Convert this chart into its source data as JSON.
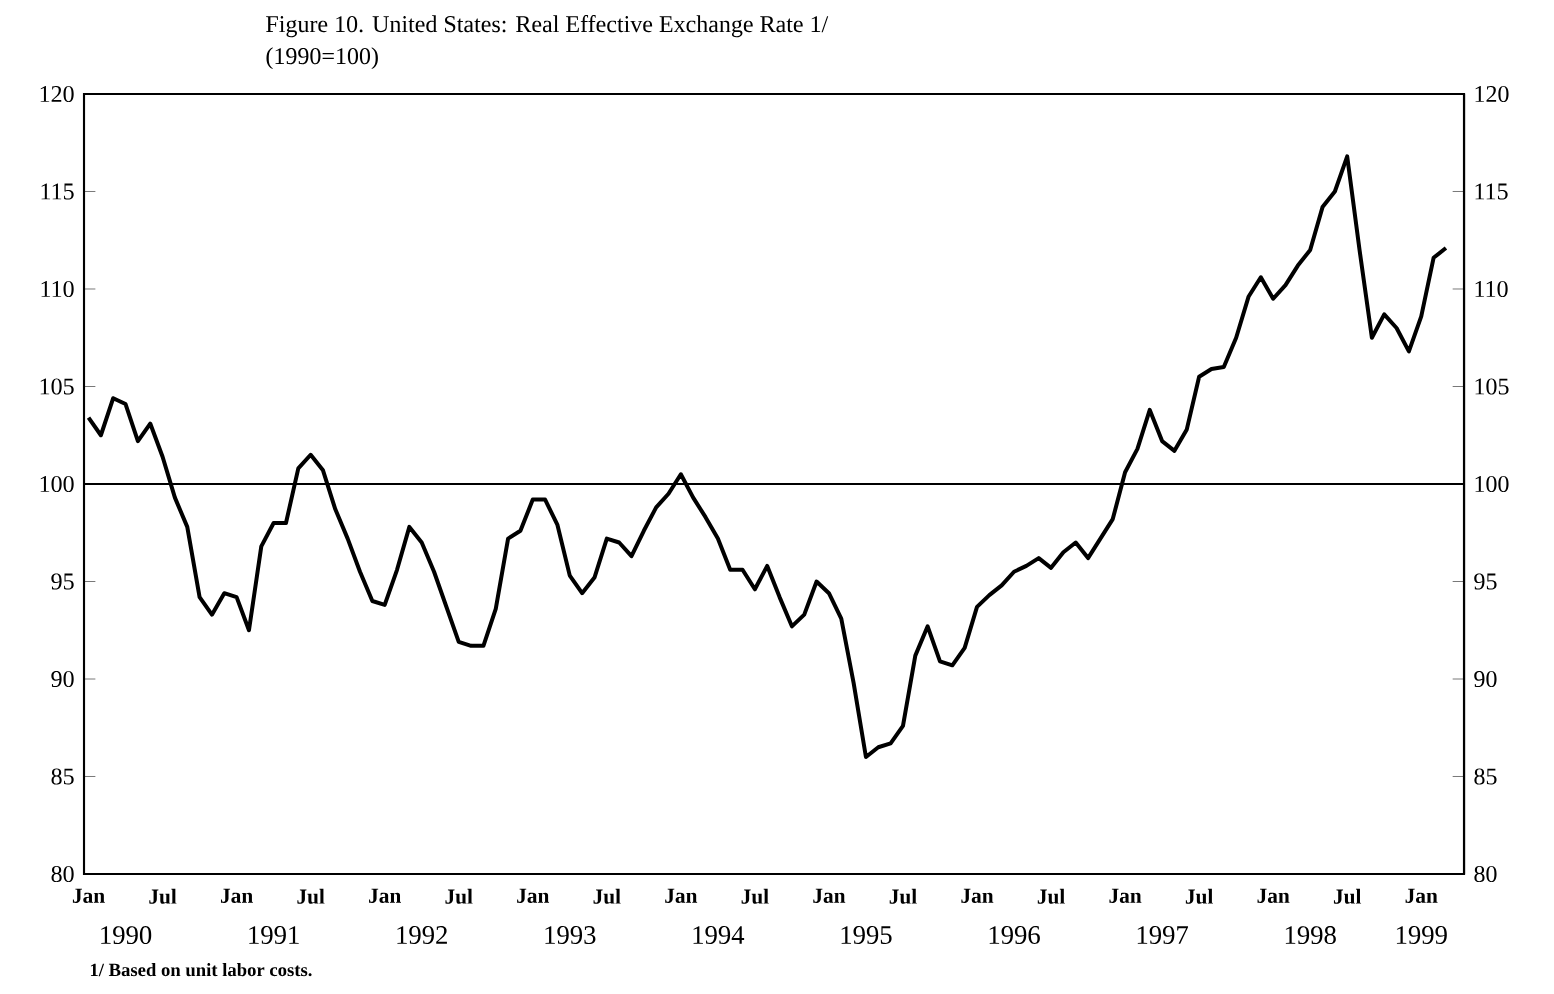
{
  "chart_data": {
    "type": "line",
    "title": "Figure 10. United States: Real Effective Exchange Rate 1/",
    "subtitle": "(1990=100)",
    "annotations": [
      "1/  Based on unit labor costs."
    ],
    "x": [
      "1990-01",
      "1990-02",
      "1990-03",
      "1990-04",
      "1990-05",
      "1990-06",
      "1990-07",
      "1990-08",
      "1990-09",
      "1990-10",
      "1990-11",
      "1990-12",
      "1991-01",
      "1991-02",
      "1991-03",
      "1991-04",
      "1991-05",
      "1991-06",
      "1991-07",
      "1991-08",
      "1991-09",
      "1991-10",
      "1991-11",
      "1991-12",
      "1992-01",
      "1992-02",
      "1992-03",
      "1992-04",
      "1992-05",
      "1992-06",
      "1992-07",
      "1992-08",
      "1992-09",
      "1992-10",
      "1992-11",
      "1992-12",
      "1993-01",
      "1993-02",
      "1993-03",
      "1993-04",
      "1993-05",
      "1993-06",
      "1993-07",
      "1993-08",
      "1993-09",
      "1993-10",
      "1993-11",
      "1993-12",
      "1994-01",
      "1994-02",
      "1994-03",
      "1994-04",
      "1994-05",
      "1994-06",
      "1994-07",
      "1994-08",
      "1994-09",
      "1994-10",
      "1994-11",
      "1994-12",
      "1995-01",
      "1995-02",
      "1995-03",
      "1995-04",
      "1995-05",
      "1995-06",
      "1995-07",
      "1995-08",
      "1995-09",
      "1995-10",
      "1995-11",
      "1995-12",
      "1996-01",
      "1996-02",
      "1996-03",
      "1996-04",
      "1996-05",
      "1996-06",
      "1996-07",
      "1996-08",
      "1996-09",
      "1996-10",
      "1996-11",
      "1996-12",
      "1997-01",
      "1997-02",
      "1997-03",
      "1997-04",
      "1997-05",
      "1997-06",
      "1997-07",
      "1997-08",
      "1997-09",
      "1997-10",
      "1997-11",
      "1997-12",
      "1998-01",
      "1998-02",
      "1998-03",
      "1998-04",
      "1998-05",
      "1998-06",
      "1998-07",
      "1998-08",
      "1998-09",
      "1998-10",
      "1998-11",
      "1998-12",
      "1999-01",
      "1999-02",
      "1999-03"
    ],
    "series": [
      {
        "color": "#000000",
        "values": [
          103.4,
          102.5,
          104.4,
          104.1,
          102.2,
          103.1,
          101.4,
          99.3,
          97.8,
          94.2,
          93.3,
          94.4,
          94.2,
          92.5,
          96.8,
          98.0,
          98.0,
          100.8,
          101.5,
          100.7,
          98.7,
          97.2,
          95.5,
          94.0,
          93.8,
          95.6,
          97.8,
          97.0,
          95.5,
          93.7,
          91.9,
          91.7,
          91.7,
          93.6,
          97.2,
          97.6,
          99.2,
          99.2,
          97.9,
          95.3,
          94.4,
          95.2,
          97.2,
          97.0,
          96.3,
          97.6,
          98.8,
          99.5,
          100.5,
          99.3,
          98.3,
          97.2,
          95.6,
          95.6,
          94.6,
          95.8,
          94.2,
          92.7,
          93.3,
          95.0,
          94.4,
          93.1,
          89.8,
          86.0,
          86.5,
          86.7,
          87.6,
          91.2,
          92.7,
          90.9,
          90.7,
          91.6,
          93.7,
          94.3,
          94.8,
          95.5,
          95.8,
          96.2,
          95.7,
          96.5,
          97.0,
          96.2,
          97.2,
          98.2,
          100.6,
          101.8,
          103.8,
          102.2,
          101.7,
          102.8,
          105.5,
          105.9,
          106.0,
          107.5,
          109.6,
          110.6,
          109.5,
          110.2,
          111.2,
          112.0,
          114.2,
          115.0,
          116.8,
          112.0,
          107.5,
          108.7,
          108.0,
          106.8,
          108.6,
          111.6,
          112.1
        ]
      }
    ],
    "xlim": [
      "1989-12-20",
      "1999-04-15"
    ],
    "xticks": [
      {
        "value": "1990-01",
        "label": "Jan"
      },
      {
        "value": "1990-07",
        "label": "Jul"
      },
      {
        "value": "1991-01",
        "label": "Jan"
      },
      {
        "value": "1991-07",
        "label": "Jul"
      },
      {
        "value": "1992-01",
        "label": "Jan"
      },
      {
        "value": "1992-07",
        "label": "Jul"
      },
      {
        "value": "1993-01",
        "label": "Jan"
      },
      {
        "value": "1993-07",
        "label": "Jul"
      },
      {
        "value": "1994-01",
        "label": "Jan"
      },
      {
        "value": "1994-07",
        "label": "Jul"
      },
      {
        "value": "1995-01",
        "label": "Jan"
      },
      {
        "value": "1995-07",
        "label": "Jul"
      },
      {
        "value": "1996-01",
        "label": "Jan"
      },
      {
        "value": "1996-07",
        "label": "Jul"
      },
      {
        "value": "1997-01",
        "label": "Jan"
      },
      {
        "value": "1997-07",
        "label": "Jul"
      },
      {
        "value": "1998-01",
        "label": "Jan"
      },
      {
        "value": "1998-07",
        "label": "Jul"
      },
      {
        "value": "1999-01",
        "label": "Jan"
      }
    ],
    "x2lim": [
      "1989-12-20",
      "1999-04-15"
    ],
    "x2ticks": [
      {
        "value": "1990-04",
        "label": "1990"
      },
      {
        "value": "1991-04",
        "label": "1991"
      },
      {
        "value": "1992-04",
        "label": "1992"
      },
      {
        "value": "1993-04",
        "label": "1993"
      },
      {
        "value": "1994-04",
        "label": "1994"
      },
      {
        "value": "1995-04",
        "label": "1995"
      },
      {
        "value": "1996-04",
        "label": "1996"
      },
      {
        "value": "1997-04",
        "label": "1997"
      },
      {
        "value": "1998-04",
        "label": "1998"
      },
      {
        "value": "1999-01",
        "label": "1999"
      }
    ],
    "ylim": [
      80,
      120
    ],
    "yticks": [
      80,
      85,
      90,
      95,
      100,
      105,
      110,
      115,
      120
    ],
    "y2lim": [
      80,
      120
    ],
    "y2ticks": [
      80,
      85,
      90,
      95,
      100,
      105,
      110,
      115,
      120
    ],
    "ref_lines": [
      {
        "axis": "y",
        "value": 100,
        "color": "#000000"
      }
    ],
    "marker": "none",
    "line_style": "solid"
  }
}
